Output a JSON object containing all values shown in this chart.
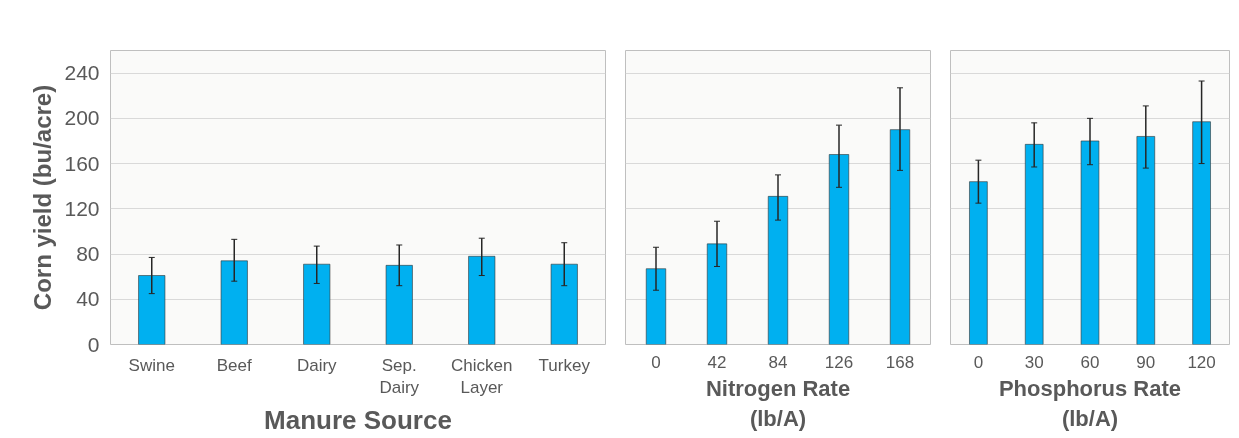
{
  "chart_data": [
    {
      "type": "bar",
      "ylabel": "Corn yield (bu/acre)",
      "xlabel": "Manure Source",
      "categories": [
        "Swine",
        "Beef",
        "Dairy",
        "Sep.\nDairy",
        "Chicken\nLayer",
        "Turkey"
      ],
      "values": [
        61,
        74,
        71,
        70,
        78,
        71
      ],
      "errors": [
        [
          45,
          77
        ],
        [
          56,
          93
        ],
        [
          54,
          87
        ],
        [
          52,
          88
        ],
        [
          61,
          94
        ],
        [
          52,
          90
        ]
      ],
      "color": "#00b0f0",
      "ylim": [
        0,
        260
      ],
      "yticks": [
        0,
        40,
        80,
        120,
        160,
        200,
        240
      ],
      "grid": "y"
    },
    {
      "type": "bar",
      "xlabel": "Nitrogen Rate\n(lb/A)",
      "categories": [
        "0",
        "42",
        "84",
        "126",
        "168"
      ],
      "values": [
        67,
        89,
        131,
        168,
        190
      ],
      "errors": [
        [
          48,
          86
        ],
        [
          69,
          109
        ],
        [
          110,
          150
        ],
        [
          139,
          194
        ],
        [
          154,
          227
        ]
      ],
      "color": "#00b0f0",
      "ylim": [
        0,
        260
      ],
      "yticks": [
        0,
        40,
        80,
        120,
        160,
        200,
        240
      ],
      "grid": "y",
      "tick_labels": "x"
    },
    {
      "type": "bar",
      "xlabel": "Phosphorus Rate\n(lb/A)",
      "categories": [
        "0",
        "30",
        "60",
        "90",
        "120"
      ],
      "values": [
        144,
        177,
        180,
        184,
        197
      ],
      "errors": [
        [
          125,
          163
        ],
        [
          157,
          196
        ],
        [
          159,
          200
        ],
        [
          156,
          211
        ],
        [
          160,
          233
        ]
      ],
      "color": "#00b0f0",
      "ylim": [
        0,
        260
      ],
      "yticks": [
        0,
        40,
        80,
        120,
        160,
        200,
        240
      ],
      "grid": "y",
      "tick_labels": "x"
    }
  ]
}
